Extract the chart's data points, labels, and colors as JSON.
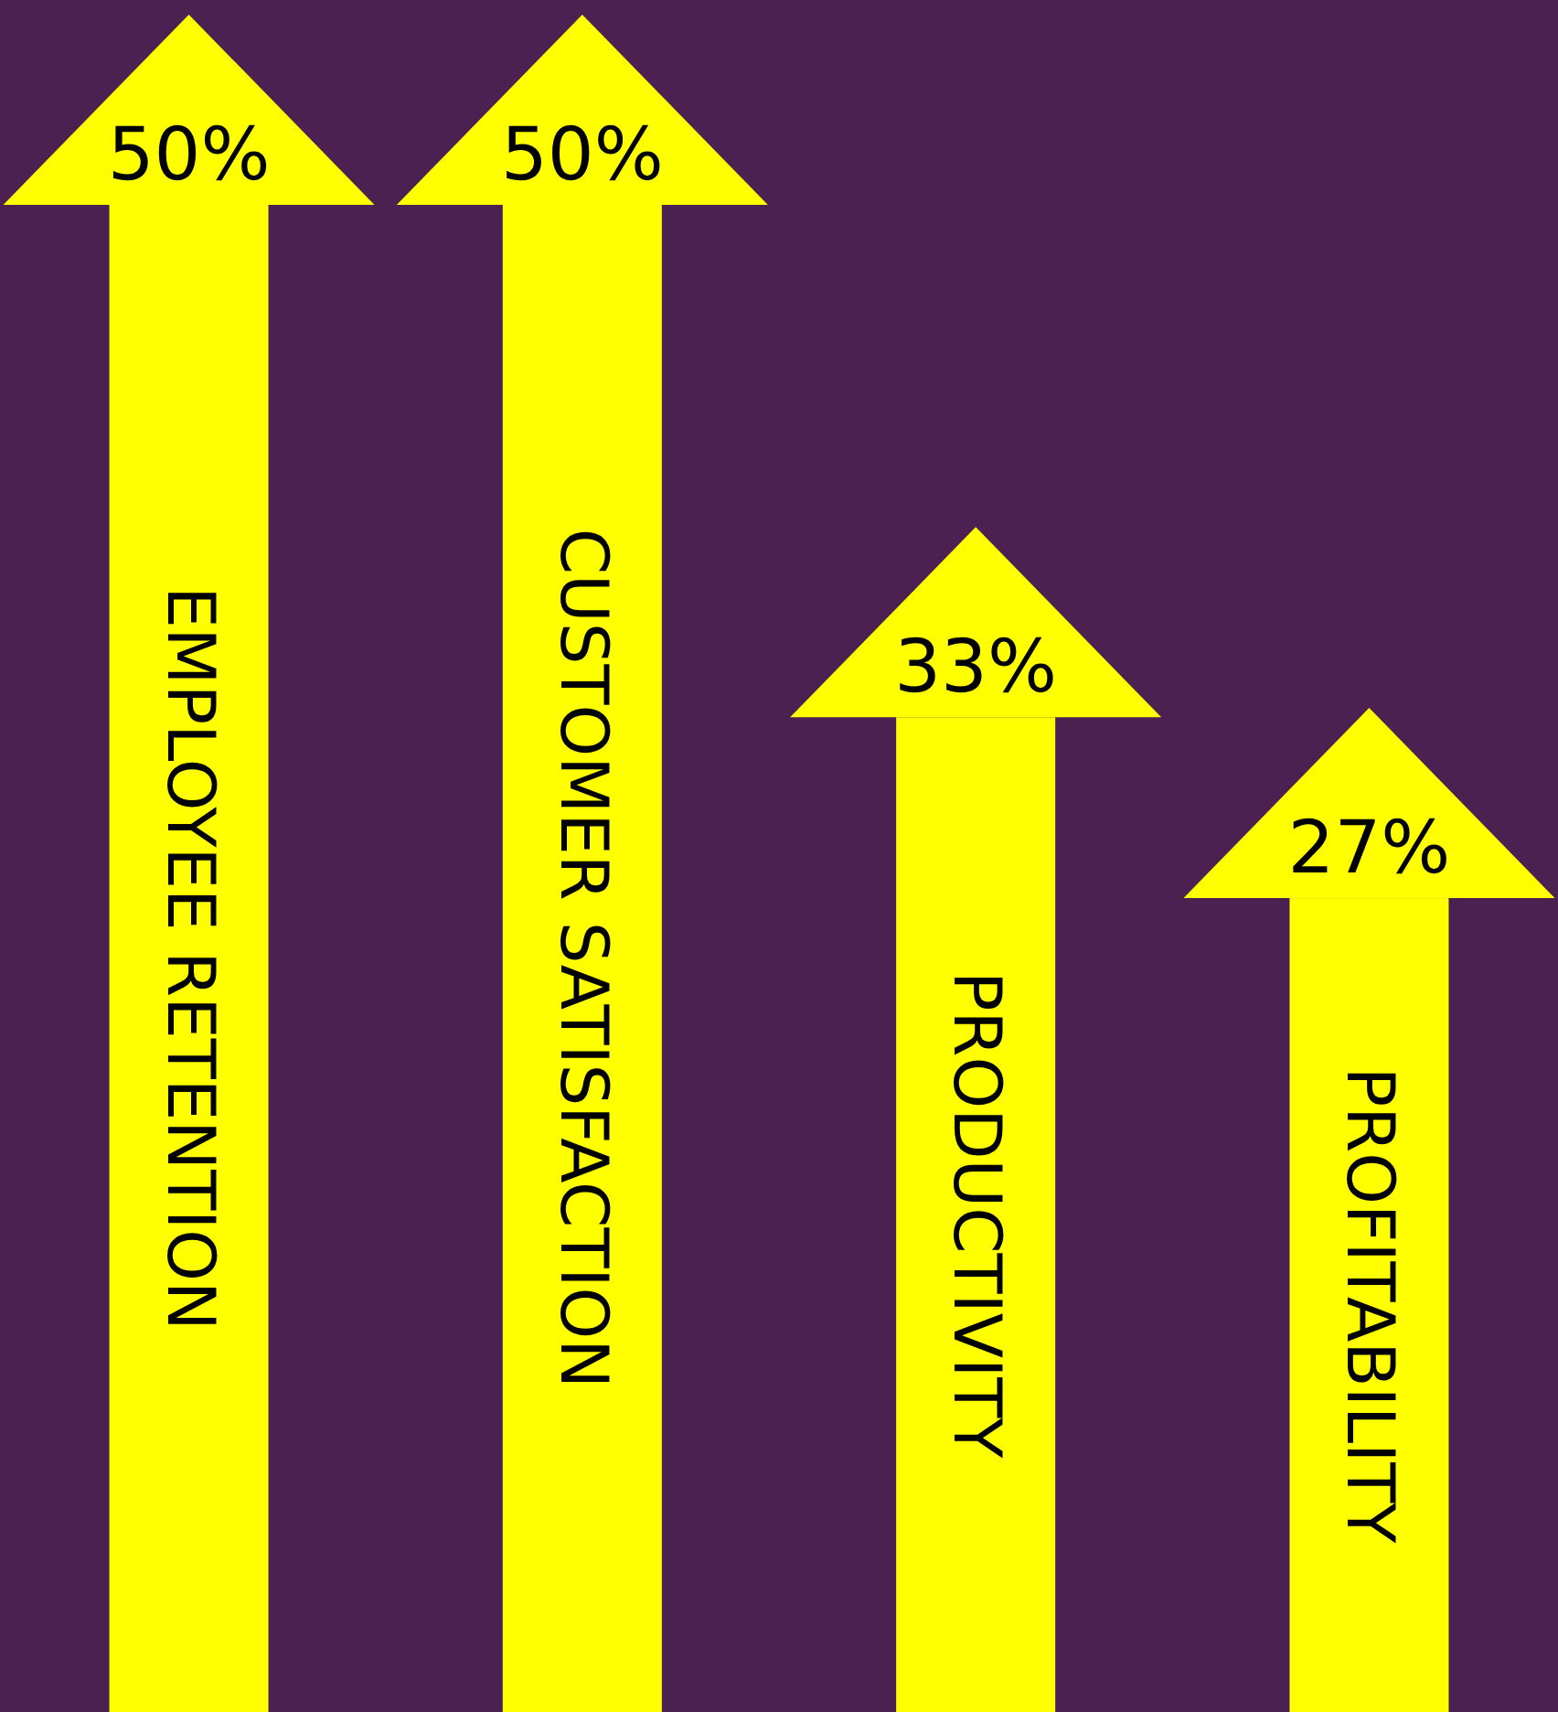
{
  "chart_data": {
    "type": "bar",
    "categories": [
      "EMPLOYEE RETENTION",
      "CUSTOMER SATISFACTION",
      "PRODUCTIVITY",
      "PROFITABILITY"
    ],
    "values": [
      50,
      50,
      33,
      27
    ],
    "value_labels": [
      "50%",
      "50%",
      "33%",
      "27%"
    ],
    "color": "#ffff00"
  }
}
